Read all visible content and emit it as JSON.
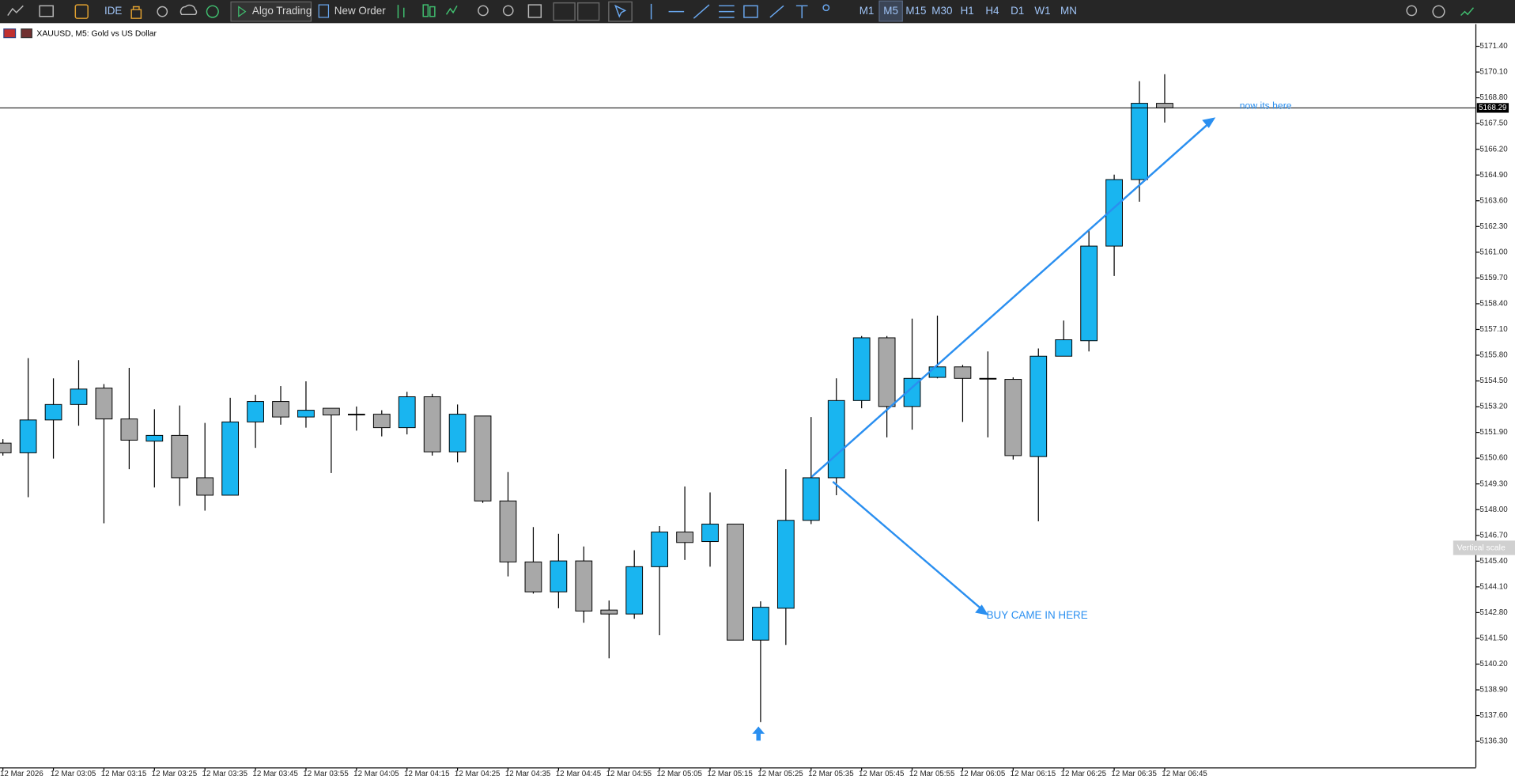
{
  "header": {
    "symbol_title": "XAUUSD, M5:  Gold vs US Dollar"
  },
  "toolbar": {
    "ide": "IDE",
    "algo_trading": "Algo Trading",
    "new_order": "New Order",
    "timeframes": [
      "M1",
      "M5",
      "M15",
      "M30",
      "H1",
      "H4",
      "D1",
      "W1",
      "MN"
    ]
  },
  "chart_data": {
    "type": "candlestick",
    "categories": [
      "12 Mar 2026",
      null,
      "12 Mar 03:05",
      null,
      "12 Mar 03:15",
      null,
      "12 Mar 03:25",
      null,
      "12 Mar 03:35",
      null,
      "12 Mar 03:45",
      null,
      "12 Mar 03:55",
      null,
      "12 Mar 04:05",
      null,
      "12 Mar 04:15",
      null,
      "12 Mar 04:25",
      null,
      "12 Mar 04:35",
      null,
      "12 Mar 04:45",
      null,
      "12 Mar 04:55",
      null,
      "12 Mar 05:05",
      null,
      "12 Mar 05:15",
      null,
      "12 Mar 05:25",
      null,
      "12 Mar 05:35",
      null,
      "12 Mar 05:45",
      null,
      "12 Mar 05:55",
      null,
      "12 Mar 06:05",
      null,
      "12 Mar 06:15",
      null,
      "12 Mar 06:25",
      null,
      "12 Mar 06:35",
      null,
      "12 Mar 06:45"
    ],
    "open": [
      5151.36,
      5150.87,
      5152.53,
      5153.31,
      5154.14,
      5152.58,
      5151.46,
      5151.75,
      5149.61,
      5148.73,
      5152.43,
      5153.46,
      5152.68,
      5153.12,
      5152.82,
      5152.82,
      5152.14,
      5153.7,
      5150.92,
      5152.73,
      5148.44,
      5145.36,
      5143.85,
      5145.41,
      5142.93,
      5142.73,
      5145.12,
      5146.87,
      5146.39,
      5147.27,
      5141.41,
      5143.02,
      5147.46,
      5149.61,
      5153.51,
      5156.68,
      5153.21,
      5154.68,
      5155.21,
      5154.63,
      5154.58,
      5150.68,
      5155.75,
      5156.53,
      5161.31,
      5164.67,
      5168.52
    ],
    "high": [
      5151.56,
      5155.65,
      5154.63,
      5155.55,
      5154.34,
      5155.16,
      5153.07,
      5153.26,
      5152.38,
      5153.65,
      5153.8,
      5154.24,
      5154.48,
      5153.12,
      5153.21,
      5153.02,
      5153.95,
      5153.85,
      5153.31,
      5152.73,
      5149.9,
      5147.12,
      5146.78,
      5146.14,
      5143.41,
      5145.95,
      5147.17,
      5149.17,
      5148.87,
      5147.27,
      5143.37,
      5150.04,
      5152.68,
      5154.63,
      5156.77,
      5156.77,
      5157.65,
      5157.8,
      5155.31,
      5155.99,
      5154.68,
      5156.14,
      5157.55,
      5162.14,
      5164.92,
      5169.64,
      5169.99
    ],
    "low": [
      5150.73,
      5148.63,
      5150.58,
      5152.24,
      5147.31,
      5150.04,
      5149.12,
      5148.19,
      5147.95,
      5148.73,
      5151.12,
      5152.29,
      5152.14,
      5149.85,
      5151.99,
      5151.7,
      5151.8,
      5150.73,
      5150.39,
      5148.34,
      5144.63,
      5143.76,
      5143.02,
      5142.29,
      5140.49,
      5142.49,
      5141.66,
      5145.46,
      5145.12,
      5141.41,
      5137.27,
      5141.17,
      5147.27,
      5148.73,
      5153.12,
      5151.65,
      5152.04,
      5154.63,
      5152.43,
      5151.65,
      5150.53,
      5147.41,
      5155.75,
      5155.99,
      5159.8,
      5163.55,
      5167.55
    ],
    "close": [
      5150.87,
      5152.53,
      5153.31,
      5154.09,
      5152.58,
      5151.51,
      5151.75,
      5149.61,
      5148.73,
      5152.43,
      5153.46,
      5152.68,
      5153.02,
      5152.78,
      5152.82,
      5152.14,
      5153.7,
      5150.92,
      5152.82,
      5148.44,
      5145.36,
      5143.85,
      5145.41,
      5142.88,
      5142.73,
      5145.12,
      5146.87,
      5146.34,
      5147.27,
      5141.41,
      5143.07,
      5147.46,
      5149.61,
      5153.51,
      5156.68,
      5153.21,
      5154.63,
      5155.21,
      5154.63,
      5154.63,
      5150.73,
      5155.75,
      5156.58,
      5161.31,
      5164.67,
      5168.52,
      5168.29
    ],
    "up_color": "#19b5f0",
    "down_color": "#a8a8a8",
    "ylim": [
      5135.0,
      5172.5
    ],
    "yticks": [
      {
        "value": 5171.4,
        "label": "5171.40"
      },
      {
        "value": 5170.1,
        "label": "5170.10"
      },
      {
        "value": 5168.8,
        "label": "5168.80"
      },
      {
        "value": 5167.5,
        "label": "5167.50"
      },
      {
        "value": 5166.2,
        "label": "5166.20"
      },
      {
        "value": 5164.9,
        "label": "5164.90"
      },
      {
        "value": 5163.6,
        "label": "5163.60"
      },
      {
        "value": 5162.3,
        "label": "5162.30"
      },
      {
        "value": 5161,
        "label": "5161.00"
      },
      {
        "value": 5159.7,
        "label": "5159.70"
      },
      {
        "value": 5158.4,
        "label": "5158.40"
      },
      {
        "value": 5157.1,
        "label": "5157.10"
      },
      {
        "value": 5155.8,
        "label": "5155.80"
      },
      {
        "value": 5154.5,
        "label": "5154.50"
      },
      {
        "value": 5153.2,
        "label": "5153.20"
      },
      {
        "value": 5151.9,
        "label": "5151.90"
      },
      {
        "value": 5150.6,
        "label": "5150.60"
      },
      {
        "value": 5149.3,
        "label": "5149.30"
      },
      {
        "value": 5148,
        "label": "5148.00"
      },
      {
        "value": 5146.7,
        "label": "5146.70"
      },
      {
        "value": 5145.4,
        "label": "5145.40"
      },
      {
        "value": 5144.1,
        "label": "5144.10"
      },
      {
        "value": 5142.8,
        "label": "5142.80"
      },
      {
        "value": 5141.5,
        "label": "5141.50"
      },
      {
        "value": 5140.2,
        "label": "5140.20"
      },
      {
        "value": 5138.9,
        "label": "5138.90"
      },
      {
        "value": 5137.6,
        "label": "5137.60"
      },
      {
        "value": 5136.3,
        "label": "5136.30"
      }
    ],
    "current_price": 5168.29,
    "annotations": [
      "now its here",
      "BUY CAME IN HERE"
    ]
  },
  "tooltip": "Vertical scale"
}
